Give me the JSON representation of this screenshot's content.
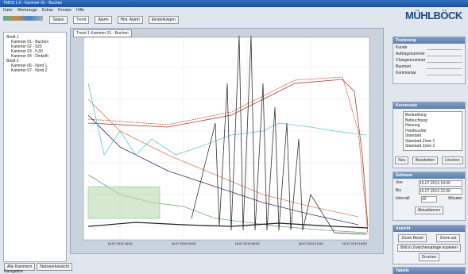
{
  "window": {
    "title": "TMDS 1.0 - Kammer 01 - Buchen"
  },
  "logo": "MÜHLBÖCK",
  "menu": [
    "Datei",
    "Werkzeuge",
    "Extras",
    "Fenster",
    "Hilfe"
  ],
  "toolbar": [
    "Status",
    "Trend",
    "Alarm",
    "Hist. Alarm",
    "Einstellungen"
  ],
  "tree": [
    {
      "label": "Bindt 1",
      "children": [
        "Kammer 01 - Buchen",
        "Kammer 02 - 925",
        "Kammer 03 - 5,00",
        "Kammer 04 - Dinkelh"
      ]
    },
    {
      "label": "Bindt 2",
      "children": [
        "Kammer 06 - Nord 1",
        "Kammer 07 - Nord 2"
      ]
    }
  ],
  "left_tabs": [
    "Alle Kammern",
    "Netzwerkansicht"
  ],
  "navigation": "Navigation",
  "document_tab": "Trend 1 Kammer 01 - Buchen",
  "x_axis_labels": [
    "15.07.2013 18:00",
    "16.07.2013 00:00",
    "16.07.2013 06:00",
    "16.07.2013 12:00",
    "16.07.2013 18:00"
  ],
  "info_panel": {
    "title": "Trocknung",
    "fields": [
      "Kunde",
      "Auftragsnummer",
      "Chargennummer",
      "Baumart",
      "Kommentar"
    ]
  },
  "curve_panel": {
    "title": "Kurvensatz",
    "items": [
      "Bestrahlung",
      "Befeuchtung",
      "Heizung",
      "Holzfeuchte",
      "Standard",
      "Standard Zone 1",
      "Standard Zone 2"
    ],
    "buttons": [
      "Neu",
      "Bearbeiten",
      "Löschen"
    ]
  },
  "time_panel": {
    "title": "Zeitraum",
    "from_label": "Von",
    "from": "15.07.2013 18:00",
    "to_label": "Bis",
    "to": "16.07.2013 22:00",
    "interval_label": "Intervall",
    "interval": "10",
    "unit": "Minuten",
    "button": "Aktualisieren"
  },
  "view_panel": {
    "title": "Ansicht",
    "buttons": [
      "Zoom Reset",
      "Zoom out",
      "Bild in Zwischenablage kopieren",
      "Drucken"
    ]
  },
  "bottom_panel": {
    "title": "Tabelle"
  }
}
